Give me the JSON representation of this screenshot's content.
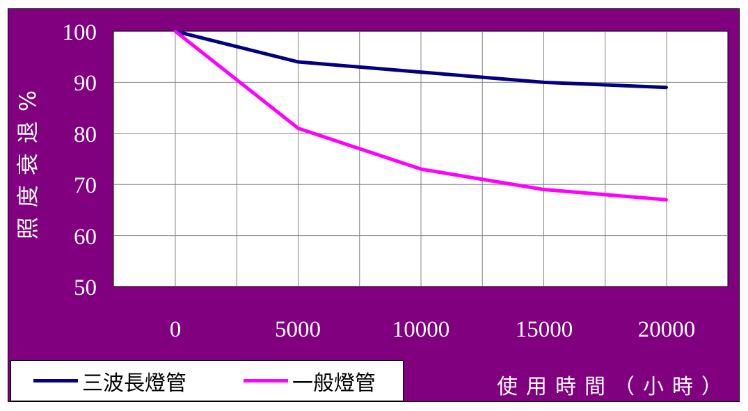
{
  "chart_data": {
    "type": "line",
    "categories": [
      "0",
      "5000",
      "10000",
      "15000",
      "20000"
    ],
    "x": [
      0,
      5000,
      10000,
      15000,
      20000
    ],
    "series": [
      {
        "name": "三波長燈管",
        "color": "#000080",
        "values": [
          100,
          94,
          92,
          90,
          89
        ]
      },
      {
        "name": "一般燈管",
        "color": "#ff00ff",
        "values": [
          100,
          81,
          73,
          69,
          67
        ]
      }
    ],
    "ylim": [
      50,
      100
    ],
    "yticks": [
      "100",
      "90",
      "80",
      "70",
      "60",
      "50"
    ],
    "ylabel": "照度衰退%",
    "xlabel": "使用時間（小時）",
    "grid": true,
    "legend_position": "bottom-left",
    "colors": {
      "background": "#800080",
      "plot_area": "#ffffff",
      "grid": "#808080",
      "text": "#ffffff"
    }
  }
}
